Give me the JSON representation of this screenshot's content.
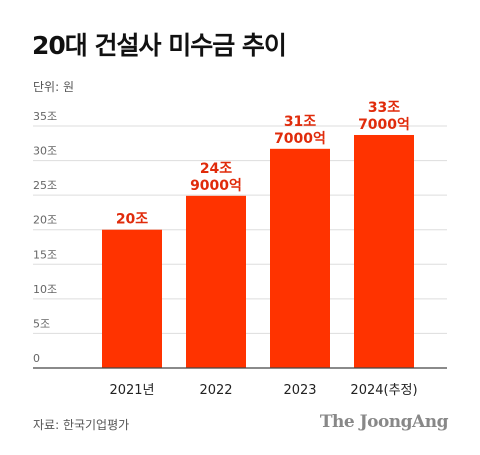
{
  "title": "20대 건설사 미수금 추이",
  "unit_label": "단위: 원",
  "source": "자료: 한국기업평가",
  "brand": "The JoongAng",
  "colors": {
    "bar": "#ff3300",
    "label": "#e02b0b",
    "grid": "#dddddd",
    "axis": "#444444"
  },
  "chart_data": {
    "type": "bar",
    "categories": [
      "2021년",
      "2022",
      "2023",
      "2024(추정)"
    ],
    "values": [
      20,
      24.9,
      31.7,
      33.7
    ],
    "data_labels": [
      [
        "20조"
      ],
      [
        "24조",
        "9000억"
      ],
      [
        "31조",
        "7000억"
      ],
      [
        "33조",
        "7000억"
      ]
    ],
    "ylim": [
      0,
      35
    ],
    "yticks": [
      {
        "value": 0,
        "label": "0"
      },
      {
        "value": 5,
        "label": "5조"
      },
      {
        "value": 10,
        "label": "10조"
      },
      {
        "value": 15,
        "label": "15조"
      },
      {
        "value": 20,
        "label": "20조"
      },
      {
        "value": 25,
        "label": "25조"
      },
      {
        "value": 30,
        "label": "30조"
      },
      {
        "value": 35,
        "label": "35조"
      }
    ],
    "grid": true,
    "xlabel": "",
    "ylabel": ""
  }
}
